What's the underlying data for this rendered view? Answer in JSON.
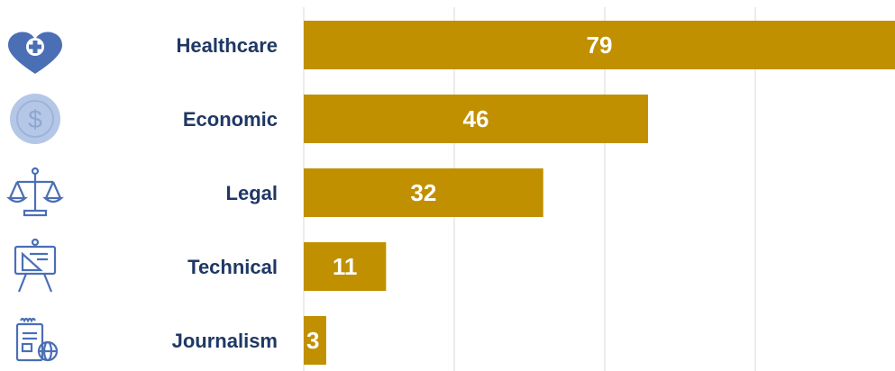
{
  "chart_data": {
    "type": "bar",
    "orientation": "horizontal",
    "categories": [
      "Healthcare",
      "Economic",
      "Legal",
      "Technical",
      "Journalism"
    ],
    "values": [
      79,
      46,
      32,
      11,
      3
    ],
    "icons": [
      "heart-plus-icon",
      "dollar-coin-icon",
      "scales-icon",
      "drafting-board-icon",
      "news-globe-icon"
    ],
    "title": "",
    "xlabel": "",
    "ylabel": "",
    "xlim": [
      0,
      79
    ],
    "grid": true,
    "legend": "none",
    "colors": {
      "bar": "#C09000",
      "category_text": "#1F3864",
      "value_text": "#FFFFFF",
      "grid": "#D9D9D9",
      "icon_primary": "#4A6FB5",
      "icon_light": "#B4C7E7"
    }
  }
}
